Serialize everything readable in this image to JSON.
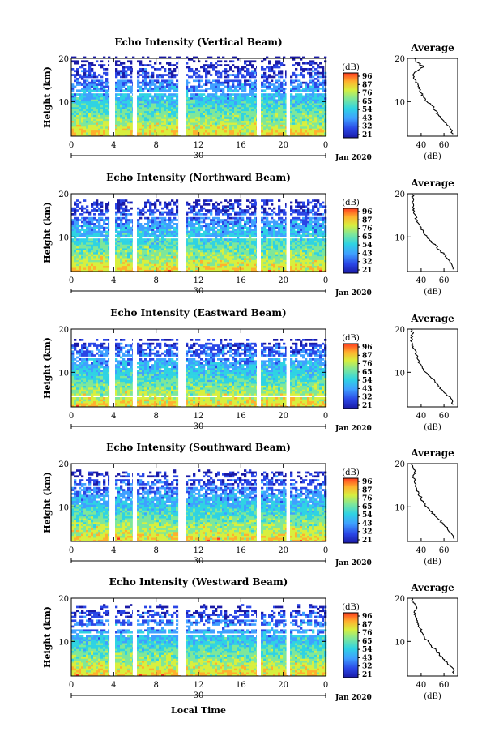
{
  "chart_data": [
    {
      "type": "heatmap",
      "title": "Echo Intensity (Vertical Beam)",
      "ylabel": "Height (km)",
      "yticks": [
        "20",
        "10"
      ],
      "ylim": [
        2,
        20
      ],
      "xticks": [
        "0",
        "4",
        "8",
        "12",
        "16",
        "20",
        "0"
      ],
      "xlim": [
        0,
        24
      ],
      "date_day": "30",
      "month_year": "Jan 2020",
      "colorbar_label": "(dB)",
      "colorbar_ticks": [
        "96",
        "87",
        "76",
        "65",
        "54",
        "43",
        "32",
        "21"
      ],
      "data_gaps_local_time": [
        [
          3.6,
          3.9
        ],
        [
          5.8,
          6.1
        ],
        [
          10.1,
          10.6
        ],
        [
          17.5,
          17.8
        ],
        [
          20.3,
          20.6
        ]
      ],
      "cloud_top_km": 20,
      "average_profile": {
        "title": "Average",
        "xlabel": "(dB)",
        "xticks": [
          "40",
          "60"
        ],
        "xlim": [
          28,
          72
        ],
        "yticks": [
          "20",
          "10"
        ],
        "height_km": [
          2.5,
          4,
          5,
          6,
          7,
          8,
          9,
          10,
          11,
          12,
          13,
          14,
          15,
          16,
          17,
          18,
          19,
          20
        ],
        "db": [
          68,
          65,
          62,
          58,
          55,
          52,
          50,
          45,
          42,
          40,
          38,
          37,
          35,
          33,
          36,
          42,
          37,
          34
        ]
      }
    },
    {
      "type": "heatmap",
      "title": "Echo Intensity (Northward Beam)",
      "ylabel": "Height (km)",
      "yticks": [
        "20",
        "10"
      ],
      "ylim": [
        2,
        20
      ],
      "xticks": [
        "0",
        "4",
        "8",
        "12",
        "16",
        "20",
        "0"
      ],
      "xlim": [
        0,
        24
      ],
      "date_day": "30",
      "month_year": "Jan 2020",
      "colorbar_label": "(dB)",
      "colorbar_ticks": [
        "96",
        "87",
        "76",
        "65",
        "54",
        "43",
        "32",
        "21"
      ],
      "data_gaps_local_time": [
        [
          3.6,
          3.9
        ],
        [
          5.8,
          6.1
        ],
        [
          10.1,
          10.6
        ],
        [
          17.5,
          17.8
        ],
        [
          20.3,
          20.6
        ]
      ],
      "cloud_top_km": 18,
      "average_profile": {
        "title": "Average",
        "xlabel": "(dB)",
        "xticks": [
          "40",
          "60"
        ],
        "xlim": [
          28,
          72
        ],
        "yticks": [
          "20",
          "10"
        ],
        "height_km": [
          2.5,
          4,
          5,
          6,
          7,
          8,
          9,
          10,
          11,
          12,
          13,
          14,
          15,
          16,
          17,
          18,
          19,
          20
        ],
        "db": [
          68,
          66,
          63,
          60,
          56,
          53,
          49,
          45,
          42,
          40,
          38,
          36,
          35,
          34,
          33,
          32,
          33,
          32
        ]
      }
    },
    {
      "type": "heatmap",
      "title": "Echo Intensity (Eastward Beam)",
      "ylabel": "Height (km)",
      "yticks": [
        "20",
        "10"
      ],
      "ylim": [
        2,
        20
      ],
      "xticks": [
        "0",
        "4",
        "8",
        "12",
        "16",
        "20",
        "0"
      ],
      "xlim": [
        0,
        24
      ],
      "date_day": "30",
      "month_year": "Jan 2020",
      "colorbar_label": "(dB)",
      "colorbar_ticks": [
        "96",
        "87",
        "76",
        "65",
        "54",
        "43",
        "32",
        "21"
      ],
      "data_gaps_local_time": [
        [
          3.6,
          3.9
        ],
        [
          5.8,
          6.1
        ],
        [
          10.1,
          10.6
        ],
        [
          17.5,
          17.8
        ],
        [
          20.3,
          20.6
        ]
      ],
      "cloud_top_km": 17,
      "average_profile": {
        "title": "Average",
        "xlabel": "(dB)",
        "xticks": [
          "40",
          "60"
        ],
        "xlim": [
          28,
          72
        ],
        "yticks": [
          "20",
          "10"
        ],
        "height_km": [
          2.5,
          4,
          5,
          6,
          7,
          8,
          9,
          10,
          11,
          12,
          13,
          14,
          15,
          16,
          17,
          18,
          19,
          20
        ],
        "db": [
          68,
          66,
          62,
          58,
          55,
          52,
          48,
          44,
          41,
          39,
          37,
          36,
          35,
          33,
          32,
          31,
          33,
          31
        ]
      }
    },
    {
      "type": "heatmap",
      "title": "Echo Intensity (Southward Beam)",
      "ylabel": "Height (km)",
      "yticks": [
        "20",
        "10"
      ],
      "ylim": [
        2,
        20
      ],
      "xticks": [
        "0",
        "4",
        "8",
        "12",
        "16",
        "20",
        "0"
      ],
      "xlim": [
        0,
        24
      ],
      "date_day": "30",
      "month_year": "Jan 2020",
      "colorbar_label": "(dB)",
      "colorbar_ticks": [
        "96",
        "87",
        "76",
        "65",
        "54",
        "43",
        "32",
        "21"
      ],
      "data_gaps_local_time": [
        [
          3.6,
          3.9
        ],
        [
          5.8,
          6.1
        ],
        [
          10.1,
          10.6
        ],
        [
          17.5,
          17.8
        ],
        [
          20.3,
          20.6
        ]
      ],
      "cloud_top_km": 18,
      "average_profile": {
        "title": "Average",
        "xlabel": "(dB)",
        "xticks": [
          "40",
          "60"
        ],
        "xlim": [
          28,
          72
        ],
        "yticks": [
          "20",
          "10"
        ],
        "height_km": [
          2.5,
          4,
          5,
          6,
          7,
          8,
          9,
          10,
          11,
          12,
          13,
          14,
          15,
          16,
          17,
          18,
          19,
          20
        ],
        "db": [
          69,
          66,
          63,
          59,
          56,
          52,
          48,
          45,
          42,
          40,
          38,
          36,
          35,
          34,
          33,
          34,
          33,
          32
        ]
      }
    },
    {
      "type": "heatmap",
      "title": "Echo Intensity (Westward Beam)",
      "ylabel": "Height (km)",
      "yticks": [
        "20",
        "10"
      ],
      "ylim": [
        2,
        20
      ],
      "xticks": [
        "0",
        "4",
        "8",
        "12",
        "16",
        "20",
        "0"
      ],
      "xlim": [
        0,
        24
      ],
      "date_day": "30",
      "month_year": "Jan 2020",
      "colorbar_label": "(dB)",
      "colorbar_ticks": [
        "96",
        "87",
        "76",
        "65",
        "54",
        "43",
        "32",
        "21"
      ],
      "data_gaps_local_time": [
        [
          3.6,
          3.9
        ],
        [
          5.8,
          6.1
        ],
        [
          10.1,
          10.6
        ],
        [
          17.5,
          17.8
        ],
        [
          20.3,
          20.6
        ]
      ],
      "cloud_top_km": 18,
      "average_profile": {
        "title": "Average",
        "xlabel": "(dB)",
        "xticks": [
          "40",
          "60"
        ],
        "xlim": [
          28,
          72
        ],
        "yticks": [
          "20",
          "10"
        ],
        "height_km": [
          2.5,
          4,
          5,
          6,
          7,
          8,
          9,
          10,
          11,
          12,
          13,
          14,
          15,
          16,
          17,
          18,
          19,
          20
        ],
        "db": [
          69,
          67,
          63,
          59,
          56,
          53,
          49,
          46,
          43,
          41,
          39,
          37,
          36,
          35,
          34,
          36,
          33,
          32
        ]
      }
    }
  ],
  "figure": {
    "xlabel_bottom": "Local Time"
  },
  "colorbar_colors": [
    "#1a1aa6",
    "#2a46e6",
    "#3fa0ff",
    "#2fd3e3",
    "#7ee79a",
    "#d8ef3e",
    "#ffb02e",
    "#ff3b1f"
  ]
}
